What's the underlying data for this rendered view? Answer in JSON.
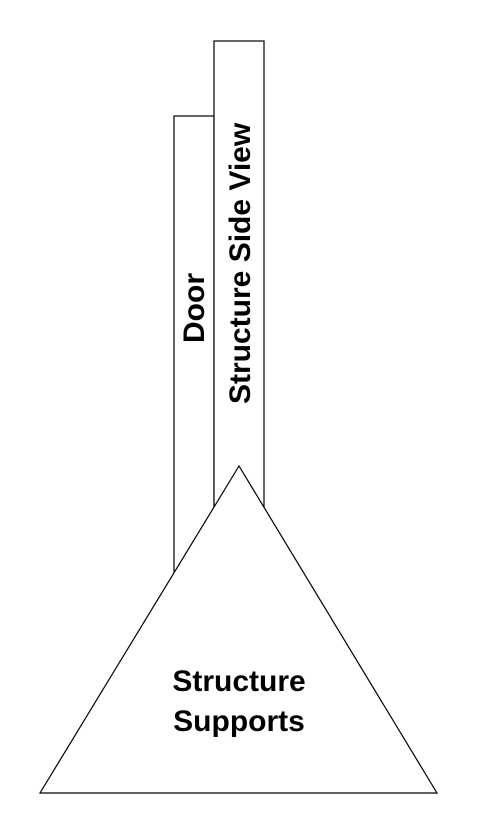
{
  "diagram": {
    "door_label": "Door",
    "side_view_label": "Structure Side View",
    "supports_label_line1": "Structure",
    "supports_label_line2": "Supports"
  }
}
